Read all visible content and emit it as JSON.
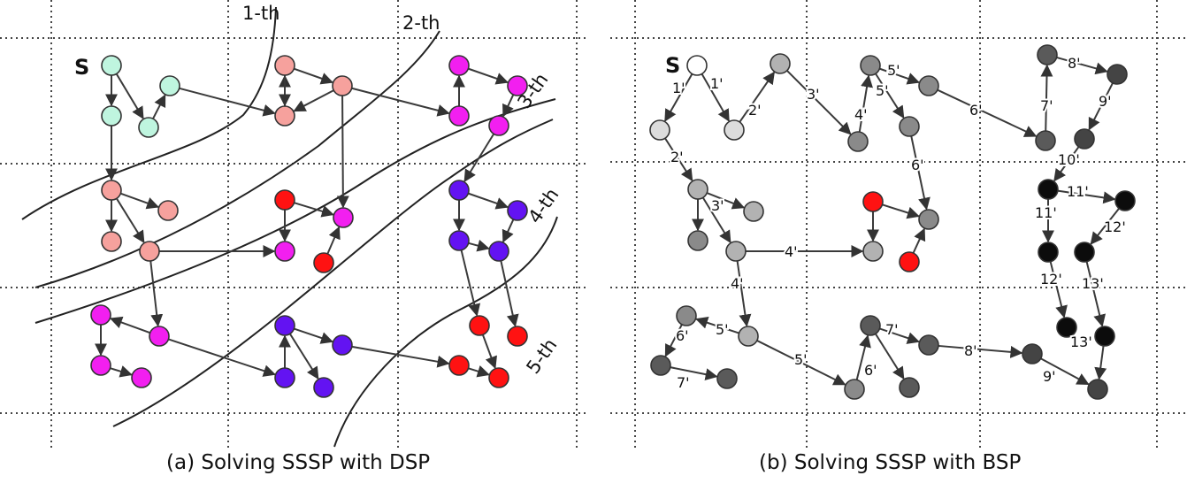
{
  "captions": {
    "a": "(a) Solving SSSP with DSP",
    "b": "(b) Solving SSSP with BSP"
  },
  "source_label": "S",
  "wave_labels": [
    "1-th",
    "2-th",
    "3-th",
    "4-th",
    "5-th"
  ],
  "edge_labels_b": [
    "1'",
    "1'",
    "2'",
    "3'",
    "4'",
    "5'",
    "5'",
    "6'",
    "6'",
    "7'",
    "8'",
    "9'",
    "10'",
    "2'",
    "3'",
    "4'",
    "11'",
    "11'",
    "12'",
    "4'",
    "12'",
    "13'",
    "5'",
    "6'",
    "7'",
    "5'",
    "6'",
    "7'",
    "8'",
    "9'",
    "13'"
  ],
  "colors": {
    "round1": "#bff5df",
    "round2": "#f6a19d",
    "round3": "#f21ff0",
    "round3_red": "#ff1212",
    "round4": "#6313f2",
    "round5": "#ff1212",
    "bsp_white": "#ffffff",
    "bsp_light": "#dcdcdc",
    "bsp_mid": "#b2b2b2",
    "bsp_gray": "#8a8a8a",
    "bsp_dark": "#5a5a5a",
    "bsp_darker": "#444444",
    "bsp_black": "#0c0c0c",
    "edge": "#3a3a3a",
    "grid": "#444444"
  }
}
